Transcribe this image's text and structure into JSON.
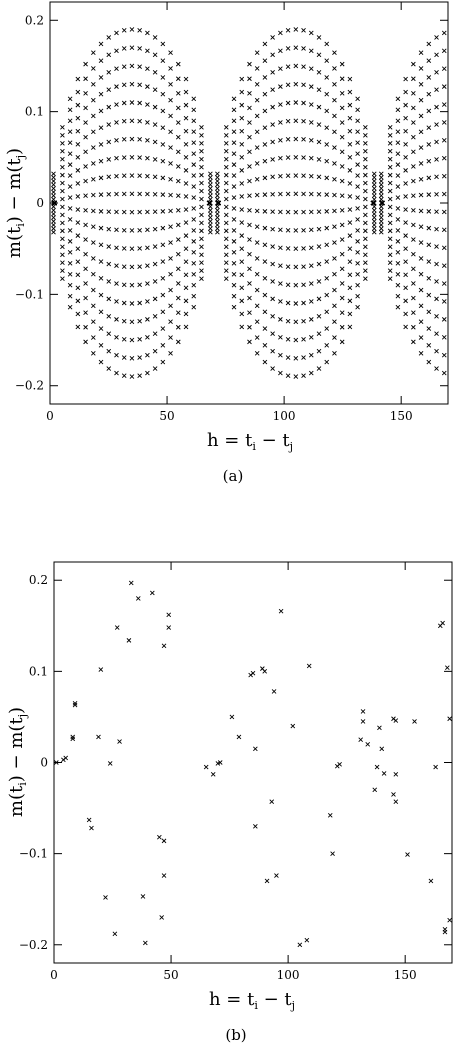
{
  "chart_data": [
    {
      "type": "scatter",
      "panel_label": "(a)",
      "xlabel": "h = t",
      "xlabel_sub1": "i",
      "xlabel_mid": " − t",
      "xlabel_sub2": "j",
      "ylabel": "m(t",
      "ylabel_sub1": "i",
      "ylabel_mid": ") − m(t",
      "ylabel_sub2": "j",
      "ylabel_end": ")",
      "xlim": [
        0,
        170
      ],
      "ylim": [
        -0.22,
        0.22
      ],
      "x_ticks": [
        0,
        50,
        100,
        150
      ],
      "y_ticks": [
        -0.2,
        -0.1,
        0,
        0.1,
        0.2
      ],
      "y_tick_labels": [
        "−0.2",
        "−0.1",
        "0",
        "0.1",
        "0.2"
      ],
      "grid": false,
      "pattern": {
        "description": "lens-shaped clusters centred at h = 35, 105, 175",
        "centers": [
          35,
          105,
          175
        ],
        "half_width": 33,
        "amplitude": 0.2,
        "levels": [
          -0.19,
          -0.17,
          -0.15,
          -0.13,
          -0.11,
          -0.09,
          -0.07,
          -0.05,
          -0.03,
          -0.01,
          0.01,
          0.03,
          0.05,
          0.07,
          0.09,
          0.11,
          0.13,
          0.15,
          0.17,
          0.19
        ],
        "arc_sample_values": [
          -1.0,
          -0.9,
          -0.8,
          -0.7,
          -0.6,
          -0.5,
          -0.4,
          -0.3,
          -0.2,
          -0.1,
          0,
          0.1,
          0.2,
          0.3,
          0.4,
          0.5,
          0.6,
          0.7,
          0.8,
          0.9,
          1.0
        ]
      }
    },
    {
      "type": "scatter",
      "panel_label": "(b)",
      "xlabel": "h = t",
      "xlabel_sub1": "i",
      "xlabel_mid": " − t",
      "xlabel_sub2": "j",
      "ylabel": "m(t",
      "ylabel_sub1": "i",
      "ylabel_mid": ") − m(t",
      "ylabel_sub2": "j",
      "ylabel_end": ")",
      "xlim": [
        0,
        170
      ],
      "ylim": [
        -0.22,
        0.22
      ],
      "x_ticks": [
        0,
        50,
        100,
        150
      ],
      "y_ticks": [
        -0.2,
        -0.1,
        0,
        0.1,
        0.2
      ],
      "y_tick_labels": [
        "−0.2",
        "−0.1",
        "0",
        "0.1",
        "0.2"
      ],
      "grid": false,
      "points": [
        [
          1,
          0.0
        ],
        [
          4,
          0.003
        ],
        [
          5,
          0.005
        ],
        [
          8,
          0.026
        ],
        [
          8,
          0.028
        ],
        [
          9,
          0.063
        ],
        [
          9,
          0.065
        ],
        [
          15,
          -0.063
        ],
        [
          16,
          -0.072
        ],
        [
          19,
          0.028
        ],
        [
          20,
          0.102
        ],
        [
          22,
          -0.148
        ],
        [
          24,
          -0.001
        ],
        [
          26,
          -0.188
        ],
        [
          27,
          0.148
        ],
        [
          28,
          0.023
        ],
        [
          32,
          0.134
        ],
        [
          33,
          0.197
        ],
        [
          36,
          0.18
        ],
        [
          38,
          -0.147
        ],
        [
          39,
          -0.198
        ],
        [
          42,
          0.186
        ],
        [
          45,
          -0.082
        ],
        [
          46,
          -0.17
        ],
        [
          47,
          0.128
        ],
        [
          47,
          -0.086
        ],
        [
          47,
          -0.124
        ],
        [
          49,
          0.162
        ],
        [
          49,
          0.148
        ],
        [
          65,
          -0.005
        ],
        [
          68,
          -0.013
        ],
        [
          70,
          -0.001
        ],
        [
          71,
          0.0
        ],
        [
          76,
          0.05
        ],
        [
          79,
          0.028
        ],
        [
          84,
          0.096
        ],
        [
          85,
          0.098
        ],
        [
          86,
          -0.07
        ],
        [
          86,
          0.015
        ],
        [
          89,
          0.103
        ],
        [
          90,
          0.1
        ],
        [
          91,
          -0.13
        ],
        [
          93,
          -0.043
        ],
        [
          94,
          0.078
        ],
        [
          95,
          -0.124
        ],
        [
          97,
          0.166
        ],
        [
          102,
          0.04
        ],
        [
          105,
          -0.2
        ],
        [
          108,
          -0.195
        ],
        [
          109,
          0.106
        ],
        [
          118,
          -0.058
        ],
        [
          119,
          -0.1
        ],
        [
          121,
          -0.004
        ],
        [
          122,
          -0.002
        ],
        [
          131,
          0.025
        ],
        [
          132,
          0.045
        ],
        [
          132,
          0.056
        ],
        [
          134,
          0.02
        ],
        [
          137,
          -0.03
        ],
        [
          138,
          -0.005
        ],
        [
          139,
          0.038
        ],
        [
          140,
          0.015
        ],
        [
          141,
          -0.012
        ],
        [
          145,
          -0.035
        ],
        [
          145,
          0.048
        ],
        [
          146,
          -0.043
        ],
        [
          146,
          -0.013
        ],
        [
          146,
          0.046
        ],
        [
          151,
          -0.101
        ],
        [
          154,
          0.045
        ],
        [
          161,
          -0.13
        ],
        [
          163,
          -0.005
        ],
        [
          165,
          0.15
        ],
        [
          166,
          0.153
        ],
        [
          167,
          -0.183
        ],
        [
          167,
          -0.186
        ],
        [
          168,
          0.104
        ],
        [
          169,
          0.048
        ],
        [
          169,
          -0.173
        ]
      ]
    }
  ]
}
